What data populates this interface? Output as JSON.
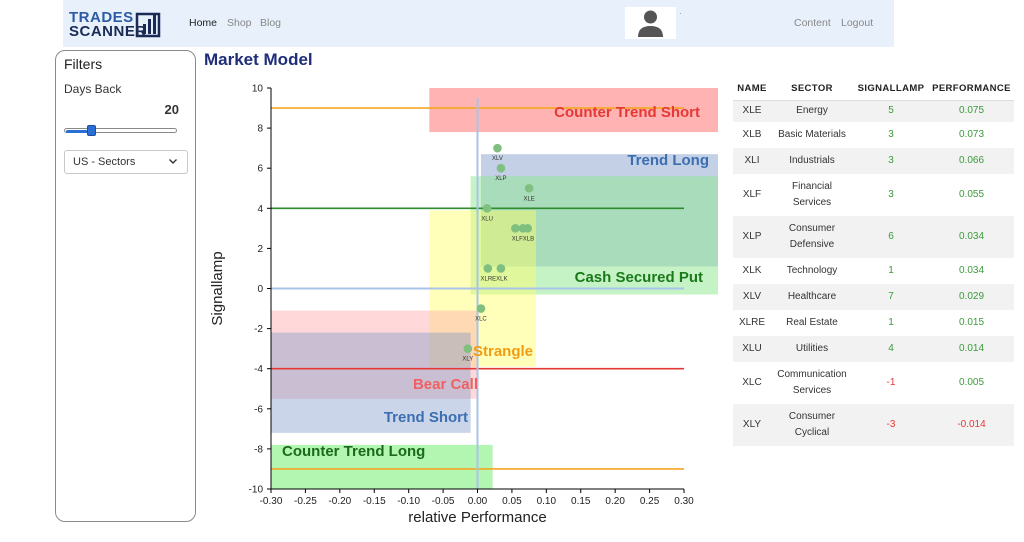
{
  "nav": {
    "logo_line1": "TRADES",
    "logo_line2": "SCANNER",
    "links": [
      "Home",
      "Shop",
      "Blog"
    ],
    "right_links": [
      "Content",
      "Logout"
    ],
    "dot": "·"
  },
  "filters": {
    "title": "Filters",
    "days_label": "Days Back",
    "days_value": "20",
    "slider_fraction": 0.22,
    "select_value": "US - Sectors"
  },
  "page_title": "Market Model",
  "table": {
    "headers": [
      "NAME",
      "SECTOR",
      "SIGNALLAMP",
      "PERFORMANCE"
    ],
    "rows": [
      {
        "name": "XLE",
        "sector": "Energy",
        "signal": "5",
        "perf": "0.075"
      },
      {
        "name": "XLB",
        "sector": "Basic Materials",
        "signal": "3",
        "perf": "0.073"
      },
      {
        "name": "XLI",
        "sector": "Industrials",
        "signal": "3",
        "perf": "0.066"
      },
      {
        "name": "XLF",
        "sector": "Financial Services",
        "signal": "3",
        "perf": "0.055"
      },
      {
        "name": "XLP",
        "sector": "Consumer Defensive",
        "signal": "6",
        "perf": "0.034"
      },
      {
        "name": "XLK",
        "sector": "Technology",
        "signal": "1",
        "perf": "0.034"
      },
      {
        "name": "XLV",
        "sector": "Healthcare",
        "signal": "7",
        "perf": "0.029"
      },
      {
        "name": "XLRE",
        "sector": "Real Estate",
        "signal": "1",
        "perf": "0.015"
      },
      {
        "name": "XLU",
        "sector": "Utilities",
        "signal": "4",
        "perf": "0.014"
      },
      {
        "name": "XLC",
        "sector": "Communication Services",
        "signal": "-1",
        "perf": "0.005"
      },
      {
        "name": "XLY",
        "sector": "Consumer Cyclical",
        "signal": "-3",
        "perf": "-0.014"
      }
    ]
  },
  "chart_data": {
    "type": "scatter",
    "xlabel": "relative Performance",
    "ylabel": "Signallamp",
    "xlim": [
      -0.3,
      0.3
    ],
    "ylim": [
      -10,
      10
    ],
    "xticks": [
      "-0.30",
      "-0.25",
      "-0.20",
      "-0.15",
      "-0.10",
      "-0.05",
      "0.00",
      "0.05",
      "0.10",
      "0.15",
      "0.20",
      "0.25",
      "0.30"
    ],
    "yticks": [
      "10",
      "8",
      "6",
      "4",
      "2",
      "0",
      "-2",
      "-4",
      "-6",
      "-8",
      "-10"
    ],
    "points": [
      {
        "name": "XLE",
        "x": 0.075,
        "y": 5
      },
      {
        "name": "XLB",
        "x": 0.073,
        "y": 3
      },
      {
        "name": "XLI",
        "x": 0.066,
        "y": 3
      },
      {
        "name": "XLF",
        "x": 0.055,
        "y": 3
      },
      {
        "name": "XLP",
        "x": 0.034,
        "y": 6
      },
      {
        "name": "XLK",
        "x": 0.034,
        "y": 1
      },
      {
        "name": "XLV",
        "x": 0.029,
        "y": 7
      },
      {
        "name": "XLRE",
        "x": 0.015,
        "y": 1
      },
      {
        "name": "XLU",
        "x": 0.014,
        "y": 4
      },
      {
        "name": "XLC",
        "x": 0.005,
        "y": -1
      },
      {
        "name": "XLY",
        "x": -0.014,
        "y": -3
      }
    ],
    "point_labels": [
      {
        "text": "XLV",
        "x": 0.029,
        "y": 7
      },
      {
        "text": "XLP",
        "x": 0.034,
        "y": 6
      },
      {
        "text": "XLE",
        "x": 0.075,
        "y": 5
      },
      {
        "text": "XLU",
        "x": 0.014,
        "y": 4
      },
      {
        "text": "XLFXLB",
        "x": 0.066,
        "y": 3
      },
      {
        "text": "XLREXLK",
        "x": 0.024,
        "y": 1
      },
      {
        "text": "XLC",
        "x": 0.005,
        "y": -1
      },
      {
        "text": "XLY",
        "x": -0.014,
        "y": -3
      }
    ],
    "regions": [
      {
        "label": "Counter Trend Short",
        "x0": -0.07,
        "x1": 0.35,
        "y0": 7.8,
        "y1": 10,
        "fill": "#ff8a8a",
        "opacity": 0.65,
        "text_color": "#e53935",
        "align": "right"
      },
      {
        "label": "Trend Long",
        "x0": 0.005,
        "x1": 0.35,
        "y0": 1.1,
        "y1": 6.7,
        "fill": "#7a96c8",
        "opacity": 0.45,
        "text_color": "#3b6fb2",
        "align": "right"
      },
      {
        "label": "Cash Secured Put",
        "x0": -0.01,
        "x1": 0.35,
        "y0": -0.3,
        "y1": 5.6,
        "fill": "#8ee88e",
        "opacity": 0.5,
        "text_color": "#1a7a1a",
        "align": "right"
      },
      {
        "label": "Strangle",
        "x0": -0.07,
        "x1": 0.085,
        "y0": -3.9,
        "y1": 3.9,
        "fill": "#ffff66",
        "opacity": 0.45,
        "text_color": "#f39c12",
        "align": "center"
      },
      {
        "label": "Bear Call",
        "x0": -0.3,
        "x1": 0.0,
        "y0": -5.5,
        "y1": -1.1,
        "fill": "#ffaaaa",
        "opacity": 0.45,
        "text_color": "#f06060",
        "align": "right"
      },
      {
        "label": "Trend Short",
        "x0": -0.3,
        "x1": -0.01,
        "y0": -7.2,
        "y1": -2.2,
        "fill": "#7a96c8",
        "opacity": 0.4,
        "text_color": "#3b6fb2",
        "align": "right"
      },
      {
        "label": "Counter Trend Long",
        "x0": -0.3,
        "x1": 0.022,
        "y0": -10,
        "y1": -7.8,
        "fill": "#7ef07e",
        "opacity": 0.6,
        "text_color": "#1a6a1a",
        "align": "left"
      }
    ],
    "hlines": [
      {
        "y": 9,
        "color": "#f5a623"
      },
      {
        "y": 4,
        "color": "#2e8b2e"
      },
      {
        "y": -4,
        "color": "#e53935"
      },
      {
        "y": -9,
        "color": "#f5a623"
      },
      {
        "y": 0,
        "color": "#a9c4e8"
      }
    ],
    "vline": {
      "x": 0,
      "color": "#a9c4e8"
    },
    "point_color": "#7fbf7f",
    "grid": false
  }
}
